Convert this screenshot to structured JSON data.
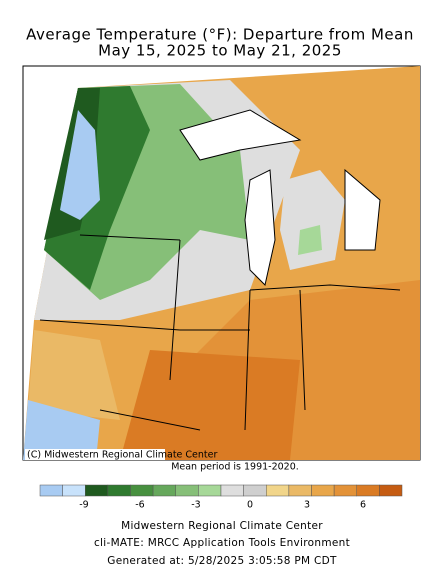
{
  "title": [
    "Average Temperature (°F): Departure from Mean",
    "May 15, 2025 to May 21, 2025"
  ],
  "copyright": "(C) Midwestern Regional Climate Center",
  "mean_period": "Mean period is 1991-2020.",
  "colorbar": {
    "colors": [
      "#a8cbf2",
      "#c8e2fb",
      "#1f5a1f",
      "#2f7a2f",
      "#47903f",
      "#66a85c",
      "#86bf78",
      "#a6d898",
      "#dedede",
      "#cfcfcf",
      "#f1d58a",
      "#eab966",
      "#e8a64a",
      "#e39238",
      "#da7b24",
      "#c55c12"
    ],
    "ticks": [
      "-9",
      "-6",
      "-3",
      "0",
      "3",
      "6"
    ]
  },
  "footer": [
    "Midwestern Regional Climate Center",
    "cli-MATE: MRCC Application Tools Environment",
    "Generated at: 5/28/2025 3:05:58 PM CDT"
  ]
}
